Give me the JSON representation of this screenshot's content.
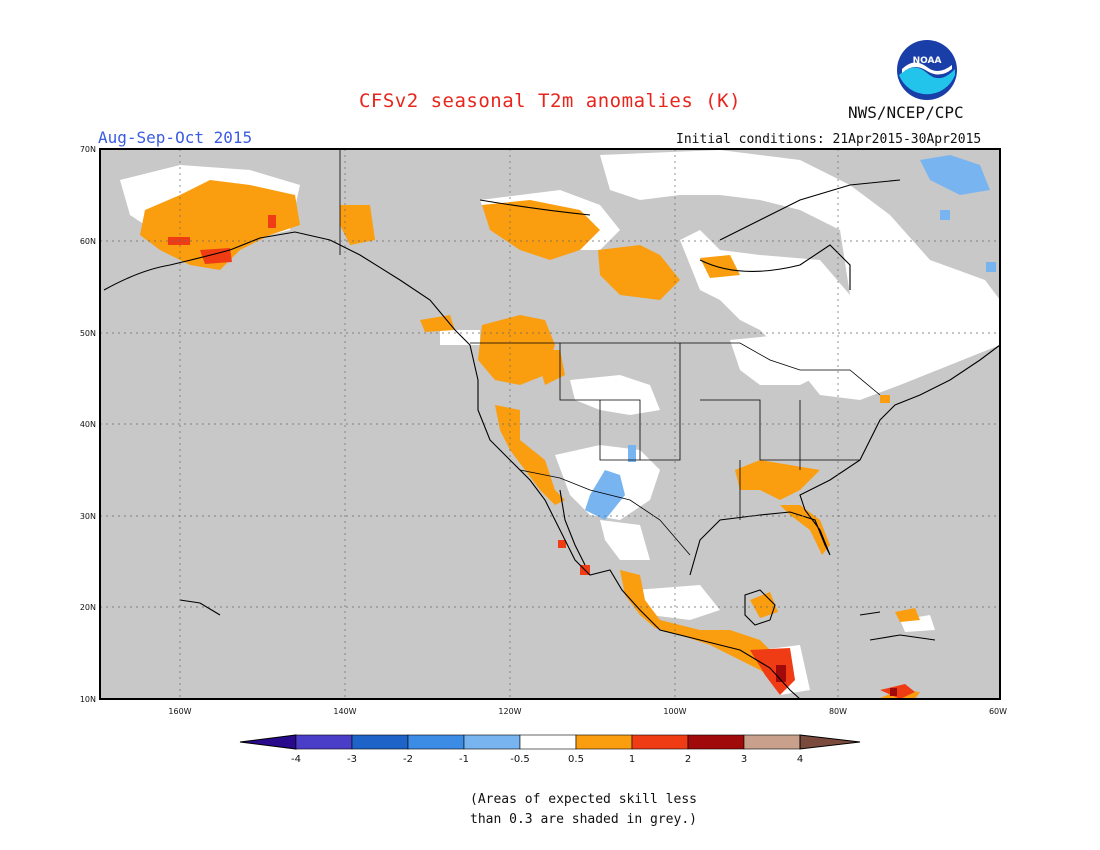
{
  "title": "CFSv2 seasonal T2m anomalies (K)",
  "period": "Aug-Sep-Oct 2015",
  "initial_conditions": "Initial conditions: 21Apr2015-30Apr2015",
  "agency": "NWS/NCEP/CPC",
  "logo_text": "NOAA",
  "note_line1": "(Areas of expected skill less",
  "note_line2": "than 0.3 are shaded in grey.)",
  "map": {
    "lat_labels": [
      "70N",
      "60N",
      "50N",
      "40N",
      "30N",
      "20N",
      "10N"
    ],
    "lon_labels": [
      "160W",
      "140W",
      "120W",
      "100W",
      "80W",
      "60W"
    ],
    "background_grey": "#c8c8c8"
  },
  "colorbar": {
    "labels": [
      "-4",
      "-3",
      "-2",
      "-1",
      "-0.5",
      "0.5",
      "1",
      "2",
      "3",
      "4"
    ],
    "colors": [
      "#2a0a8c",
      "#4a3ec8",
      "#1e64c8",
      "#3c8ce6",
      "#78b4f0",
      "#ffffff",
      "#fa9d0f",
      "#f03c14",
      "#a00a0a",
      "#c8a08c",
      "#7a4a3c"
    ]
  }
}
